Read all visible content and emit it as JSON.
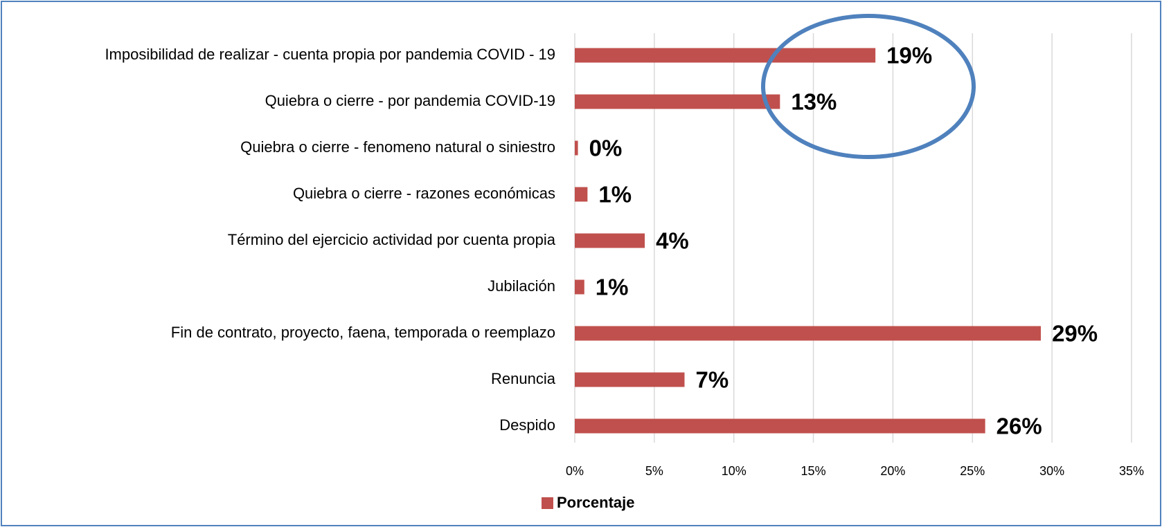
{
  "chart_data": {
    "type": "barh",
    "categories": [
      "Imposibilidad de realizar - cuenta propia por pandemia COVID - 19",
      "Quiebra o cierre - por pandemia COVID-19",
      "Quiebra o cierre - fenomeno natural o siniestro",
      "Quiebra o cierre - razones económicas",
      "Término del ejercicio actividad por cuenta propia",
      "Jubilación",
      "Fin de contrato, proyecto, faena, temporada o reemplazo",
      "Renuncia",
      "Despido"
    ],
    "series": [
      {
        "name": "Porcentaje",
        "color": "#c0504d",
        "values": [
          18.9,
          12.9,
          0.2,
          0.8,
          4.4,
          0.6,
          29.3,
          6.9,
          25.8
        ],
        "value_labels": [
          "19%",
          "13%",
          "0%",
          "1%",
          "4%",
          "1%",
          "29%",
          "7%",
          "26%"
        ]
      }
    ],
    "xlim": [
      0,
      35
    ],
    "xticks": [
      {
        "value": 0,
        "label": "0%"
      },
      {
        "value": 5,
        "label": "5%"
      },
      {
        "value": 10,
        "label": "10%"
      },
      {
        "value": 15,
        "label": "15%"
      },
      {
        "value": 20,
        "label": "20%"
      },
      {
        "value": 25,
        "label": "25%"
      },
      {
        "value": 30,
        "label": "30%"
      },
      {
        "value": 35,
        "label": "35%"
      }
    ],
    "grid": true,
    "legend": "bottom"
  }
}
